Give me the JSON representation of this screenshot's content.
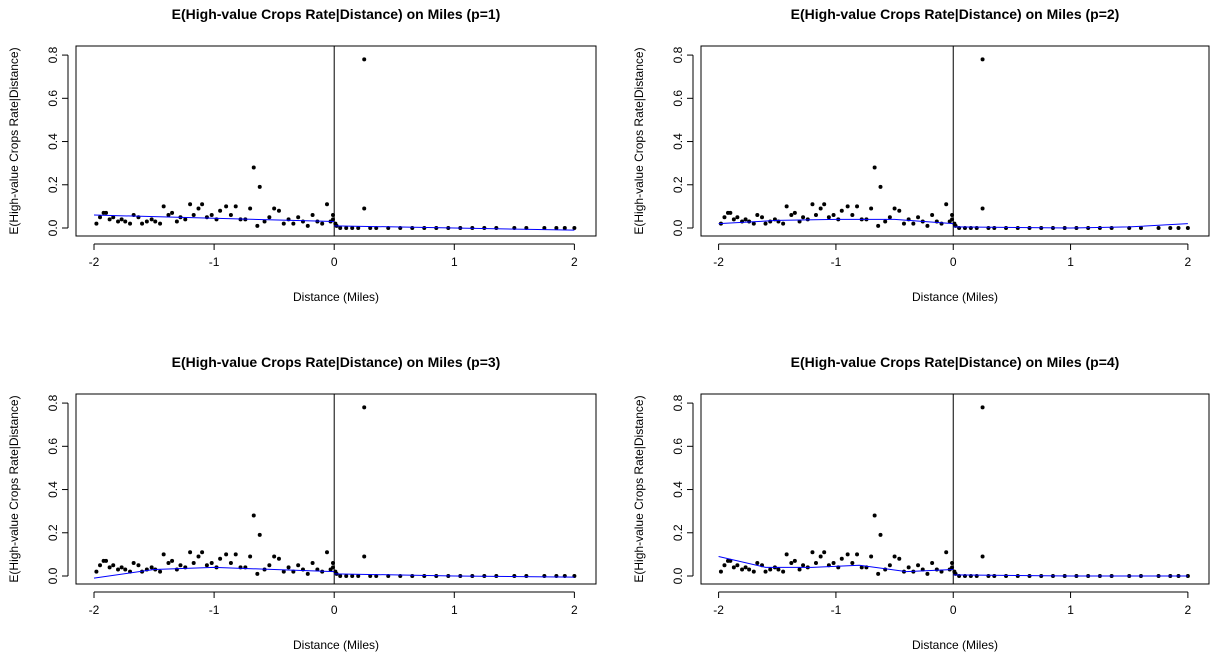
{
  "chart_data": [
    {
      "type": "scatter",
      "title": "E(High-value Crops Rate|Distance) on Miles (p=1)",
      "xlabel": "Distance (Miles)",
      "ylabel": "E(High-value Crops Rate|Distance)",
      "x": [
        -1.98,
        -1.95,
        -1.92,
        -1.9,
        -1.87,
        -1.84,
        -1.8,
        -1.77,
        -1.74,
        -1.7,
        -1.67,
        -1.63,
        -1.6,
        -1.56,
        -1.52,
        -1.49,
        -1.45,
        -1.42,
        -1.38,
        -1.35,
        -1.31,
        -1.28,
        -1.24,
        -1.2,
        -1.17,
        -1.13,
        -1.1,
        -1.06,
        -1.02,
        -0.98,
        -0.95,
        -0.9,
        -0.86,
        -0.82,
        -0.78,
        -0.74,
        -0.7,
        -0.67,
        -0.64,
        -0.62,
        -0.58,
        -0.54,
        -0.5,
        -0.46,
        -0.42,
        -0.38,
        -0.34,
        -0.3,
        -0.26,
        -0.22,
        -0.18,
        -0.14,
        -0.1,
        -0.06,
        -0.03,
        -0.01,
        -0.01,
        0.01,
        0.02,
        0.05,
        0.1,
        0.15,
        0.2,
        0.25,
        0.25,
        0.3,
        0.35,
        0.45,
        0.55,
        0.65,
        0.75,
        0.85,
        0.95,
        1.05,
        1.15,
        1.25,
        1.35,
        1.5,
        1.6,
        1.75,
        1.85,
        1.92,
        2.0
      ],
      "values": [
        0.02,
        0.05,
        0.07,
        0.07,
        0.04,
        0.05,
        0.03,
        0.04,
        0.03,
        0.02,
        0.06,
        0.05,
        0.02,
        0.03,
        0.04,
        0.03,
        0.02,
        0.1,
        0.06,
        0.07,
        0.03,
        0.05,
        0.04,
        0.11,
        0.06,
        0.09,
        0.11,
        0.05,
        0.06,
        0.04,
        0.08,
        0.1,
        0.06,
        0.1,
        0.04,
        0.04,
        0.09,
        0.28,
        0.01,
        0.19,
        0.03,
        0.05,
        0.09,
        0.08,
        0.02,
        0.04,
        0.02,
        0.05,
        0.03,
        0.01,
        0.06,
        0.03,
        0.02,
        0.11,
        0.03,
        0.06,
        0.04,
        0.02,
        0.01,
        0,
        0,
        0,
        0,
        0.78,
        0.09,
        0,
        0,
        0,
        0,
        0,
        0,
        0,
        0,
        0,
        0,
        0,
        0,
        0,
        0,
        0,
        0,
        0,
        0
      ],
      "color": "#000000",
      "fit": {
        "x": [
          -2,
          -1,
          0,
          0,
          0,
          1,
          2
        ],
        "values": [
          0.06,
          0.045,
          0.03,
          null,
          0.01,
          0,
          -0.01
        ],
        "color": "#0000ff"
      },
      "cutoff": 0,
      "xlim": [
        -2.15,
        2.18
      ],
      "ylim": [
        -0.037,
        0.842
      ],
      "xticks": [
        -2,
        -1,
        0,
        1,
        2
      ],
      "yticks": [
        {
          "value": 0,
          "label": "0.0"
        },
        0.2,
        0.4,
        0.6,
        0.8
      ]
    },
    {
      "type": "scatter",
      "title": "E(High-value Crops Rate|Distance) on Miles (p=2)",
      "xlabel": "Distance (Miles)",
      "ylabel": "E(High-value Crops Rate|Distance)",
      "x": [
        -1.98,
        -1.95,
        -1.92,
        -1.9,
        -1.87,
        -1.84,
        -1.8,
        -1.77,
        -1.74,
        -1.7,
        -1.67,
        -1.63,
        -1.6,
        -1.56,
        -1.52,
        -1.49,
        -1.45,
        -1.42,
        -1.38,
        -1.35,
        -1.31,
        -1.28,
        -1.24,
        -1.2,
        -1.17,
        -1.13,
        -1.1,
        -1.06,
        -1.02,
        -0.98,
        -0.95,
        -0.9,
        -0.86,
        -0.82,
        -0.78,
        -0.74,
        -0.7,
        -0.67,
        -0.64,
        -0.62,
        -0.58,
        -0.54,
        -0.5,
        -0.46,
        -0.42,
        -0.38,
        -0.34,
        -0.3,
        -0.26,
        -0.22,
        -0.18,
        -0.14,
        -0.1,
        -0.06,
        -0.03,
        -0.01,
        -0.01,
        0.01,
        0.02,
        0.05,
        0.1,
        0.15,
        0.2,
        0.25,
        0.25,
        0.3,
        0.35,
        0.45,
        0.55,
        0.65,
        0.75,
        0.85,
        0.95,
        1.05,
        1.15,
        1.25,
        1.35,
        1.5,
        1.6,
        1.75,
        1.85,
        1.92,
        2.0
      ],
      "values": [
        0.02,
        0.05,
        0.07,
        0.07,
        0.04,
        0.05,
        0.03,
        0.04,
        0.03,
        0.02,
        0.06,
        0.05,
        0.02,
        0.03,
        0.04,
        0.03,
        0.02,
        0.1,
        0.06,
        0.07,
        0.03,
        0.05,
        0.04,
        0.11,
        0.06,
        0.09,
        0.11,
        0.05,
        0.06,
        0.04,
        0.08,
        0.1,
        0.06,
        0.1,
        0.04,
        0.04,
        0.09,
        0.28,
        0.01,
        0.19,
        0.03,
        0.05,
        0.09,
        0.08,
        0.02,
        0.04,
        0.02,
        0.05,
        0.03,
        0.01,
        0.06,
        0.03,
        0.02,
        0.11,
        0.03,
        0.06,
        0.04,
        0.02,
        0.01,
        0,
        0,
        0,
        0,
        0.78,
        0.09,
        0,
        0,
        0,
        0,
        0,
        0,
        0,
        0,
        0,
        0,
        0,
        0,
        0,
        0,
        0,
        0,
        0,
        0
      ],
      "color": "#000000",
      "fit": {
        "x": [
          -2,
          -1.5,
          -1,
          -0.5,
          0,
          0,
          0,
          1,
          1.5,
          2
        ],
        "values": [
          0.02,
          0.035,
          0.04,
          0.04,
          0.02,
          null,
          0.005,
          0,
          0.005,
          0.02
        ],
        "color": "#0000ff"
      },
      "cutoff": 0,
      "xlim": [
        -2.15,
        2.18
      ],
      "ylim": [
        -0.037,
        0.842
      ],
      "xticks": [
        -2,
        -1,
        0,
        1,
        2
      ],
      "yticks": [
        {
          "value": 0,
          "label": "0.0"
        },
        0.2,
        0.4,
        0.6,
        0.8
      ]
    },
    {
      "type": "scatter",
      "title": "E(High-value Crops Rate|Distance) on Miles (p=3)",
      "xlabel": "Distance (Miles)",
      "ylabel": "E(High-value Crops Rate|Distance)",
      "x": [
        -1.98,
        -1.95,
        -1.92,
        -1.9,
        -1.87,
        -1.84,
        -1.8,
        -1.77,
        -1.74,
        -1.7,
        -1.67,
        -1.63,
        -1.6,
        -1.56,
        -1.52,
        -1.49,
        -1.45,
        -1.42,
        -1.38,
        -1.35,
        -1.31,
        -1.28,
        -1.24,
        -1.2,
        -1.17,
        -1.13,
        -1.1,
        -1.06,
        -1.02,
        -0.98,
        -0.95,
        -0.9,
        -0.86,
        -0.82,
        -0.78,
        -0.74,
        -0.7,
        -0.67,
        -0.64,
        -0.62,
        -0.58,
        -0.54,
        -0.5,
        -0.46,
        -0.42,
        -0.38,
        -0.34,
        -0.3,
        -0.26,
        -0.22,
        -0.18,
        -0.14,
        -0.1,
        -0.06,
        -0.03,
        -0.01,
        -0.01,
        0.01,
        0.02,
        0.05,
        0.1,
        0.15,
        0.2,
        0.25,
        0.25,
        0.3,
        0.35,
        0.45,
        0.55,
        0.65,
        0.75,
        0.85,
        0.95,
        1.05,
        1.15,
        1.25,
        1.35,
        1.5,
        1.6,
        1.75,
        1.85,
        1.92,
        2.0
      ],
      "values": [
        0.02,
        0.05,
        0.07,
        0.07,
        0.04,
        0.05,
        0.03,
        0.04,
        0.03,
        0.02,
        0.06,
        0.05,
        0.02,
        0.03,
        0.04,
        0.03,
        0.02,
        0.1,
        0.06,
        0.07,
        0.03,
        0.05,
        0.04,
        0.11,
        0.06,
        0.09,
        0.11,
        0.05,
        0.06,
        0.04,
        0.08,
        0.1,
        0.06,
        0.1,
        0.04,
        0.04,
        0.09,
        0.28,
        0.01,
        0.19,
        0.03,
        0.05,
        0.09,
        0.08,
        0.02,
        0.04,
        0.02,
        0.05,
        0.03,
        0.01,
        0.06,
        0.03,
        0.02,
        0.11,
        0.03,
        0.06,
        0.04,
        0.02,
        0.01,
        0,
        0,
        0,
        0,
        0.78,
        0.09,
        0,
        0,
        0,
        0,
        0,
        0,
        0,
        0,
        0,
        0,
        0,
        0,
        0,
        0,
        0,
        0,
        0,
        0
      ],
      "color": "#000000",
      "fit": {
        "x": [
          -2,
          -1.5,
          -1,
          -0.5,
          0,
          0,
          0,
          1,
          2
        ],
        "values": [
          -0.01,
          0.03,
          0.04,
          0.03,
          0.02,
          null,
          0.01,
          0,
          -0.005
        ],
        "color": "#0000ff"
      },
      "cutoff": 0,
      "xlim": [
        -2.15,
        2.18
      ],
      "ylim": [
        -0.037,
        0.842
      ],
      "xticks": [
        -2,
        -1,
        0,
        1,
        2
      ],
      "yticks": [
        {
          "value": 0,
          "label": "0.0"
        },
        0.2,
        0.4,
        0.6,
        0.8
      ]
    },
    {
      "type": "scatter",
      "title": "E(High-value Crops Rate|Distance) on Miles (p=4)",
      "xlabel": "Distance (Miles)",
      "ylabel": "E(High-value Crops Rate|Distance)",
      "x": [
        -1.98,
        -1.95,
        -1.92,
        -1.9,
        -1.87,
        -1.84,
        -1.8,
        -1.77,
        -1.74,
        -1.7,
        -1.67,
        -1.63,
        -1.6,
        -1.56,
        -1.52,
        -1.49,
        -1.45,
        -1.42,
        -1.38,
        -1.35,
        -1.31,
        -1.28,
        -1.24,
        -1.2,
        -1.17,
        -1.13,
        -1.1,
        -1.06,
        -1.02,
        -0.98,
        -0.95,
        -0.9,
        -0.86,
        -0.82,
        -0.78,
        -0.74,
        -0.7,
        -0.67,
        -0.64,
        -0.62,
        -0.58,
        -0.54,
        -0.5,
        -0.46,
        -0.42,
        -0.38,
        -0.34,
        -0.3,
        -0.26,
        -0.22,
        -0.18,
        -0.14,
        -0.1,
        -0.06,
        -0.03,
        -0.01,
        -0.01,
        0.01,
        0.02,
        0.05,
        0.1,
        0.15,
        0.2,
        0.25,
        0.25,
        0.3,
        0.35,
        0.45,
        0.55,
        0.65,
        0.75,
        0.85,
        0.95,
        1.05,
        1.15,
        1.25,
        1.35,
        1.5,
        1.6,
        1.75,
        1.85,
        1.92,
        2.0
      ],
      "values": [
        0.02,
        0.05,
        0.07,
        0.07,
        0.04,
        0.05,
        0.03,
        0.04,
        0.03,
        0.02,
        0.06,
        0.05,
        0.02,
        0.03,
        0.04,
        0.03,
        0.02,
        0.1,
        0.06,
        0.07,
        0.03,
        0.05,
        0.04,
        0.11,
        0.06,
        0.09,
        0.11,
        0.05,
        0.06,
        0.04,
        0.08,
        0.1,
        0.06,
        0.1,
        0.04,
        0.04,
        0.09,
        0.28,
        0.01,
        0.19,
        0.03,
        0.05,
        0.09,
        0.08,
        0.02,
        0.04,
        0.02,
        0.05,
        0.03,
        0.01,
        0.06,
        0.03,
        0.02,
        0.11,
        0.03,
        0.06,
        0.04,
        0.02,
        0.01,
        0,
        0,
        0,
        0,
        0.78,
        0.09,
        0,
        0,
        0,
        0,
        0,
        0,
        0,
        0,
        0,
        0,
        0,
        0,
        0,
        0,
        0,
        0,
        0,
        0
      ],
      "color": "#000000",
      "fit": {
        "x": [
          -2,
          -1.6,
          -1.2,
          -0.8,
          -0.4,
          0,
          0,
          0,
          1,
          2
        ],
        "values": [
          0.09,
          0.04,
          0.04,
          0.05,
          0.02,
          0.03,
          null,
          0.005,
          0,
          0
        ],
        "color": "#0000ff"
      },
      "cutoff": 0,
      "xlim": [
        -2.15,
        2.18
      ],
      "ylim": [
        -0.037,
        0.842
      ],
      "xticks": [
        -2,
        -1,
        0,
        1,
        2
      ],
      "yticks": [
        {
          "value": 0,
          "label": "0.0"
        },
        0.2,
        0.4,
        0.6,
        0.8
      ]
    }
  ]
}
